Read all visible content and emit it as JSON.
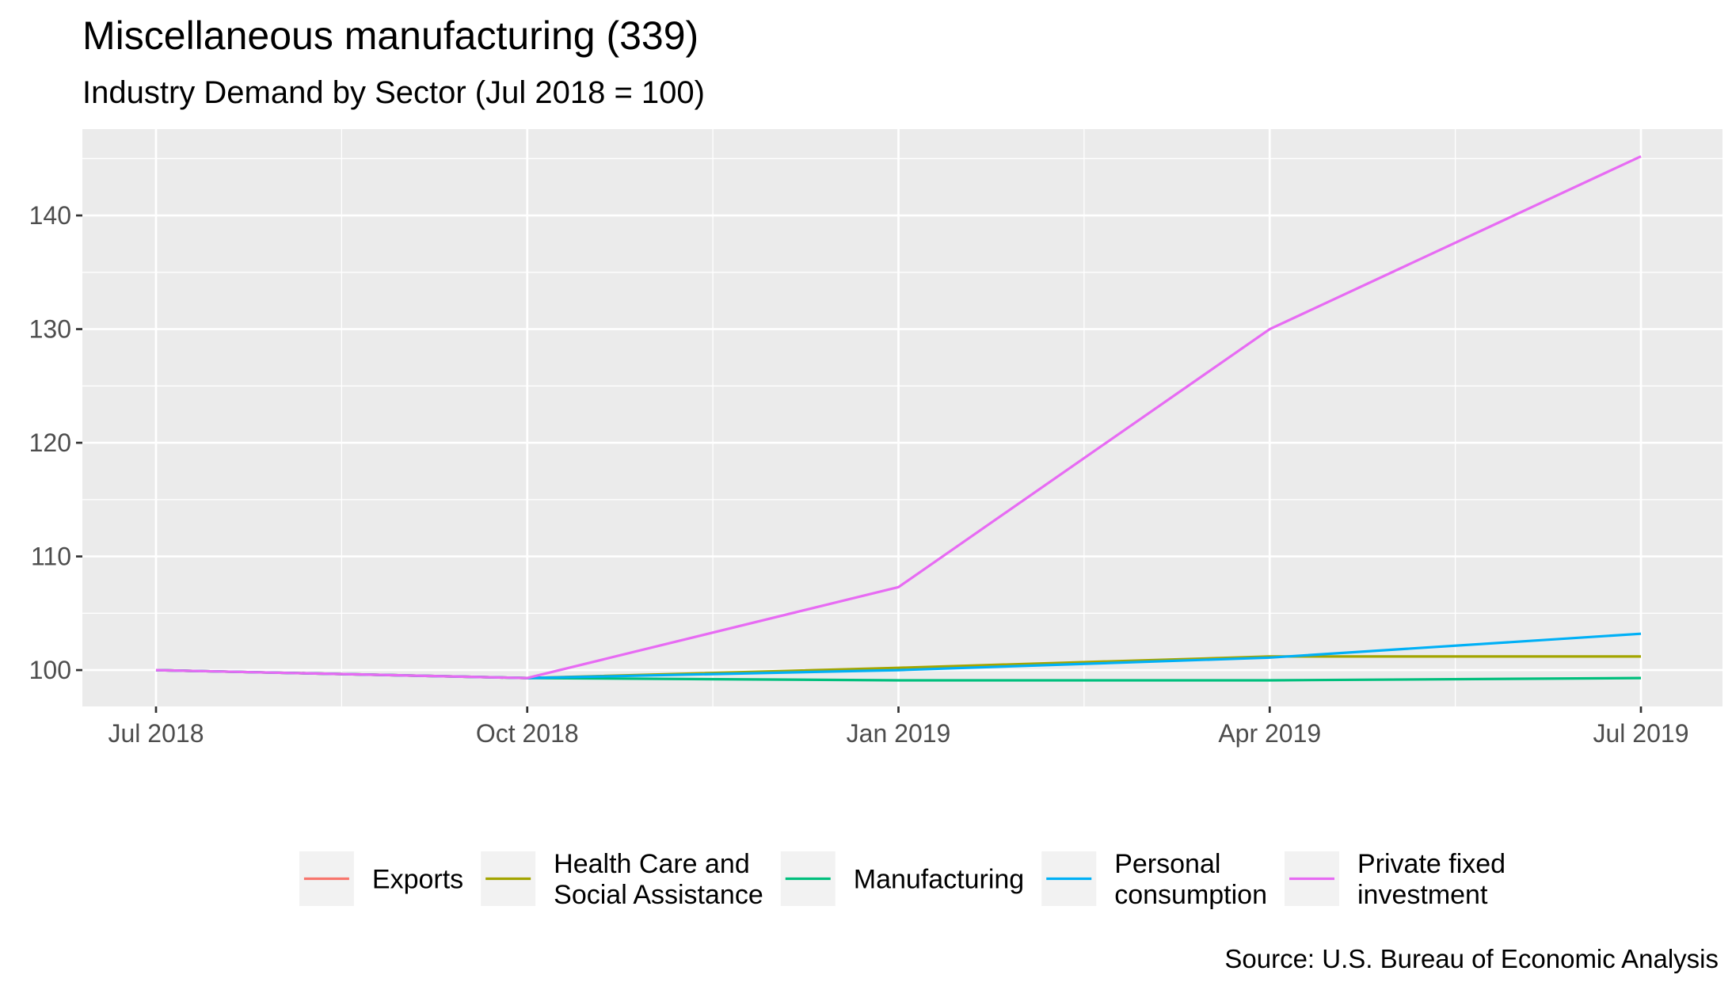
{
  "chart_data": {
    "type": "line",
    "title": "Miscellaneous manufacturing (339)",
    "subtitle": "Industry Demand by Sector (Jul 2018 = 100)",
    "caption": "Source: U.S. Bureau of Economic Analysis",
    "xlabel": "",
    "ylabel": "",
    "x": [
      "Jul 2018",
      "Oct 2018",
      "Jan 2019",
      "Apr 2019",
      "Jul 2019"
    ],
    "x_ticks": [
      "Jul 2018",
      "Oct 2018",
      "Jan 2019",
      "Apr 2019",
      "Jul 2019"
    ],
    "y_ticks": [
      100,
      110,
      120,
      130,
      140
    ],
    "ylim": [
      96.8,
      147.6
    ],
    "grid": true,
    "legend_position": "bottom",
    "series": [
      {
        "name": "Exports",
        "color": "#F8766D",
        "values": [
          100.0,
          99.3,
          null,
          null,
          null
        ]
      },
      {
        "name": "Health Care and Social Assistance",
        "color": "#A3A500",
        "values": [
          100.0,
          99.3,
          100.2,
          101.2,
          101.2
        ]
      },
      {
        "name": "Manufacturing",
        "color": "#00BF7D",
        "values": [
          100.0,
          99.3,
          99.1,
          99.1,
          99.3
        ]
      },
      {
        "name": "Personal consumption",
        "color": "#00B0F6",
        "values": [
          100.0,
          99.3,
          100.0,
          101.1,
          103.2
        ]
      },
      {
        "name": "Private fixed investment",
        "color": "#E76BF3",
        "values": [
          100.0,
          99.3,
          107.3,
          130.0,
          145.2
        ]
      }
    ]
  }
}
